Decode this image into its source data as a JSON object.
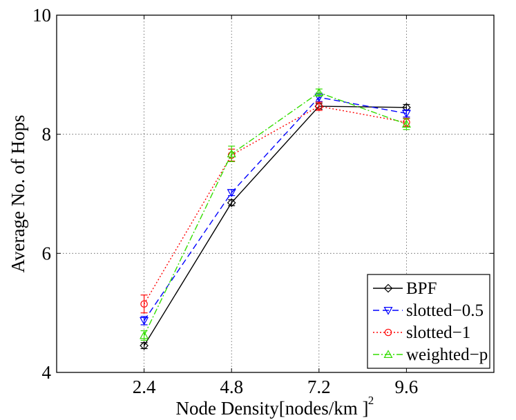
{
  "chart_data": {
    "type": "line",
    "title": "",
    "xlabel": "Node Density[nodes/km  ]",
    "ylabel": "Average No. of Hops",
    "x": [
      2.4,
      4.8,
      7.2,
      9.6
    ],
    "x_tick_labels": [
      "2.4",
      "4.8",
      "7.2",
      "9.6"
    ],
    "xlim": [
      0,
      12
    ],
    "ylim": [
      4,
      10
    ],
    "y_ticks": [
      4,
      6,
      8,
      10
    ],
    "y_tick_labels": [
      "4",
      "6",
      "8",
      "10"
    ],
    "grid": true,
    "legend_position": "bottom-right",
    "series": [
      {
        "name": "BPF",
        "values": [
          4.45,
          6.85,
          8.47,
          8.45
        ],
        "errors": [
          0.05,
          0.05,
          0.05,
          0.05
        ],
        "color": "#000000",
        "dash": "solid",
        "marker": "diamond"
      },
      {
        "name": "slotted−0.5",
        "values": [
          4.87,
          7.02,
          8.62,
          8.35
        ],
        "errors": [
          0.07,
          0.05,
          0.07,
          0.06
        ],
        "color": "#0000ff",
        "dash": "dashed",
        "marker": "triangle-down"
      },
      {
        "name": "slotted−1",
        "values": [
          5.15,
          7.65,
          8.47,
          8.2
        ],
        "errors": [
          0.15,
          0.1,
          0.07,
          0.07
        ],
        "color": "#ff0000",
        "dash": "dotted",
        "marker": "circle"
      },
      {
        "name": "weighted−p",
        "values": [
          4.62,
          7.67,
          8.7,
          8.17
        ],
        "errors": [
          0.08,
          0.13,
          0.06,
          0.09
        ],
        "color": "#33dd00",
        "dash": "dashdot",
        "marker": "triangle-up"
      }
    ]
  }
}
